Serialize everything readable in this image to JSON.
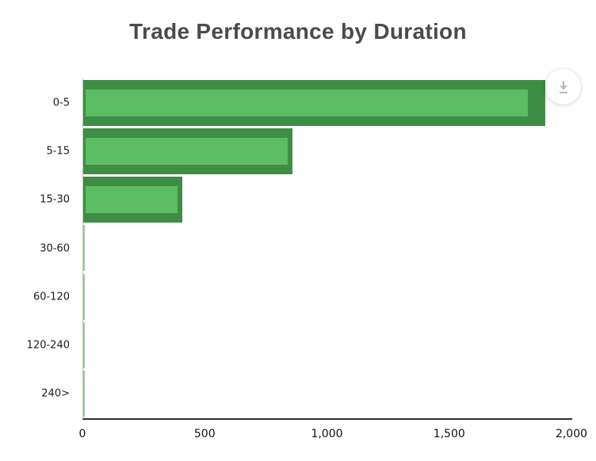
{
  "chart": {
    "colors": {
      "bar_fill": "#5cbd64",
      "bar_border": "#3e8d44",
      "y_axis_line": "#bcc6bc",
      "x_axis_line": "#2d2d2d",
      "title_color": "#4b4b4b",
      "label_color": "#1c1c1c",
      "download_icon": "#b7bcbf",
      "download_bg": "#ffffff",
      "background": "#ffffff"
    },
    "download_button": {
      "icon": "download-icon",
      "tooltip": ""
    }
  },
  "chart_data": {
    "type": "bar",
    "orientation": "horizontal",
    "title": "Trade Performance by Duration",
    "categories": [
      "0-5",
      "5-15",
      "15-30",
      "30-60",
      "60-120",
      "120-240",
      "240>"
    ],
    "series": [
      {
        "name": "bar-outer-dark-green",
        "values": [
          1890,
          855,
          405,
          0,
          0,
          0,
          0
        ]
      },
      {
        "name": "bar-inner-light-green",
        "values": [
          1820,
          835,
          385,
          0,
          0,
          0,
          0
        ]
      }
    ],
    "xlabel": "",
    "ylabel": "",
    "xlim": [
      0,
      2000
    ],
    "x_ticks": [
      "0",
      "500",
      "1,000",
      "1,500",
      "2,000"
    ],
    "grid": false,
    "legend": false
  }
}
